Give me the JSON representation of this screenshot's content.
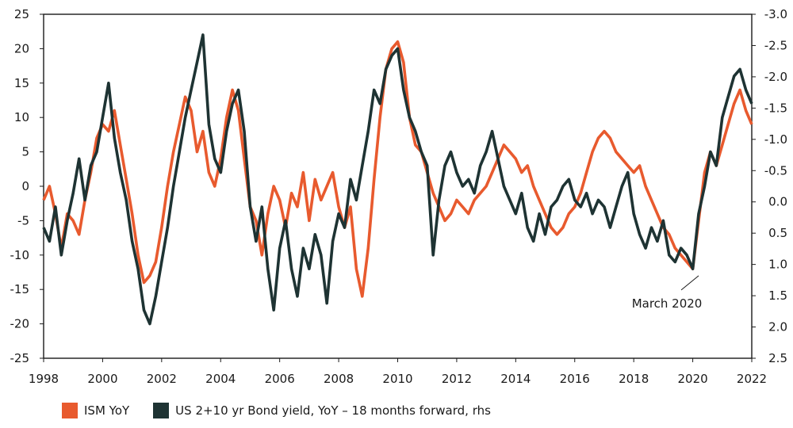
{
  "chart_data": {
    "type": "line",
    "title": "",
    "xlabel": "",
    "ylabel": "",
    "xlim": [
      1998,
      2022
    ],
    "ylim_left": [
      -25,
      25
    ],
    "ylim_right_inverted": [
      -3.0,
      2.5
    ],
    "x_ticks": [
      "1998",
      "2000",
      "2002",
      "2004",
      "2006",
      "2008",
      "2010",
      "2012",
      "2014",
      "2016",
      "2018",
      "2020",
      "2022"
    ],
    "y_ticks_left": [
      "25",
      "20",
      "15",
      "10",
      "5",
      "0",
      "-5",
      "-10",
      "-15",
      "-20",
      "-25"
    ],
    "y_ticks_right": [
      "-3.0",
      "-2.5",
      "-2.0",
      "-1.5",
      "-1.0",
      "-0.5",
      "0.0",
      "0.5",
      "1.0",
      "1.5",
      "2.0",
      "2.5"
    ],
    "grid": false,
    "legend_position": "bottom-left",
    "annotation": {
      "text": "March 2020",
      "x": 2020.2,
      "y_left": -13
    },
    "series": [
      {
        "name": "ISM YoY",
        "color": "#e85a2e",
        "axis": "left",
        "points": [
          [
            1998.0,
            -2
          ],
          [
            1998.2,
            0
          ],
          [
            1998.4,
            -4
          ],
          [
            1998.6,
            -9
          ],
          [
            1998.8,
            -4
          ],
          [
            1999.0,
            -5
          ],
          [
            1999.2,
            -7
          ],
          [
            1999.4,
            -2
          ],
          [
            1999.6,
            2
          ],
          [
            1999.8,
            7
          ],
          [
            2000.0,
            9
          ],
          [
            2000.2,
            8
          ],
          [
            2000.4,
            11
          ],
          [
            2000.6,
            6
          ],
          [
            2000.8,
            1
          ],
          [
            2001.0,
            -4
          ],
          [
            2001.2,
            -10
          ],
          [
            2001.4,
            -14
          ],
          [
            2001.6,
            -13
          ],
          [
            2001.8,
            -11
          ],
          [
            2002.0,
            -6
          ],
          [
            2002.2,
            0
          ],
          [
            2002.4,
            5
          ],
          [
            2002.6,
            9
          ],
          [
            2002.8,
            13
          ],
          [
            2003.0,
            11
          ],
          [
            2003.2,
            5
          ],
          [
            2003.4,
            8
          ],
          [
            2003.6,
            2
          ],
          [
            2003.8,
            0
          ],
          [
            2004.0,
            4
          ],
          [
            2004.2,
            10
          ],
          [
            2004.4,
            14
          ],
          [
            2004.6,
            11
          ],
          [
            2004.8,
            4
          ],
          [
            2005.0,
            -3
          ],
          [
            2005.2,
            -5
          ],
          [
            2005.4,
            -10
          ],
          [
            2005.6,
            -4
          ],
          [
            2005.8,
            0
          ],
          [
            2006.0,
            -2
          ],
          [
            2006.2,
            -6
          ],
          [
            2006.4,
            -1
          ],
          [
            2006.6,
            -3
          ],
          [
            2006.8,
            2
          ],
          [
            2007.0,
            -5
          ],
          [
            2007.2,
            1
          ],
          [
            2007.4,
            -2
          ],
          [
            2007.6,
            0
          ],
          [
            2007.8,
            2
          ],
          [
            2008.0,
            -3
          ],
          [
            2008.2,
            -6
          ],
          [
            2008.4,
            -3
          ],
          [
            2008.6,
            -12
          ],
          [
            2008.8,
            -16
          ],
          [
            2009.0,
            -9
          ],
          [
            2009.2,
            1
          ],
          [
            2009.4,
            10
          ],
          [
            2009.6,
            17
          ],
          [
            2009.8,
            20
          ],
          [
            2010.0,
            21
          ],
          [
            2010.2,
            18
          ],
          [
            2010.4,
            10
          ],
          [
            2010.6,
            6
          ],
          [
            2010.8,
            5
          ],
          [
            2011.0,
            2
          ],
          [
            2011.2,
            -1
          ],
          [
            2011.4,
            -3
          ],
          [
            2011.6,
            -5
          ],
          [
            2011.8,
            -4
          ],
          [
            2012.0,
            -2
          ],
          [
            2012.2,
            -3
          ],
          [
            2012.4,
            -4
          ],
          [
            2012.6,
            -2
          ],
          [
            2012.8,
            -1
          ],
          [
            2013.0,
            0
          ],
          [
            2013.2,
            2
          ],
          [
            2013.4,
            4
          ],
          [
            2013.6,
            6
          ],
          [
            2013.8,
            5
          ],
          [
            2014.0,
            4
          ],
          [
            2014.2,
            2
          ],
          [
            2014.4,
            3
          ],
          [
            2014.6,
            0
          ],
          [
            2014.8,
            -2
          ],
          [
            2015.0,
            -4
          ],
          [
            2015.2,
            -6
          ],
          [
            2015.4,
            -7
          ],
          [
            2015.6,
            -6
          ],
          [
            2015.8,
            -4
          ],
          [
            2016.0,
            -3
          ],
          [
            2016.2,
            -1
          ],
          [
            2016.4,
            2
          ],
          [
            2016.6,
            5
          ],
          [
            2016.8,
            7
          ],
          [
            2017.0,
            8
          ],
          [
            2017.2,
            7
          ],
          [
            2017.4,
            5
          ],
          [
            2017.6,
            4
          ],
          [
            2017.8,
            3
          ],
          [
            2018.0,
            2
          ],
          [
            2018.2,
            3
          ],
          [
            2018.4,
            0
          ],
          [
            2018.6,
            -2
          ],
          [
            2018.8,
            -4
          ],
          [
            2019.0,
            -6
          ],
          [
            2019.2,
            -7
          ],
          [
            2019.4,
            -9
          ],
          [
            2019.6,
            -10
          ],
          [
            2019.8,
            -11
          ],
          [
            2020.0,
            -12
          ],
          [
            2020.2,
            -5
          ],
          [
            2020.4,
            2
          ],
          [
            2020.6,
            5
          ],
          [
            2020.8,
            3
          ],
          [
            2021.0,
            6
          ],
          [
            2021.2,
            9
          ],
          [
            2021.4,
            12
          ],
          [
            2021.6,
            14
          ],
          [
            2021.8,
            11
          ],
          [
            2022.0,
            9
          ]
        ]
      },
      {
        "name": "US 2+10 yr Bond yield, YoY – 18 months forward, rhs",
        "color": "#1e3333",
        "axis": "left",
        "points": [
          [
            1998.0,
            -6
          ],
          [
            1998.2,
            -8
          ],
          [
            1998.4,
            -3
          ],
          [
            1998.6,
            -10
          ],
          [
            1998.8,
            -5
          ],
          [
            1999.0,
            -1
          ],
          [
            1999.2,
            4
          ],
          [
            1999.4,
            -2
          ],
          [
            1999.6,
            3
          ],
          [
            1999.8,
            5
          ],
          [
            2000.0,
            10
          ],
          [
            2000.2,
            15
          ],
          [
            2000.4,
            7
          ],
          [
            2000.6,
            2
          ],
          [
            2000.8,
            -2
          ],
          [
            2001.0,
            -8
          ],
          [
            2001.2,
            -12
          ],
          [
            2001.4,
            -18
          ],
          [
            2001.6,
            -20
          ],
          [
            2001.8,
            -16
          ],
          [
            2002.0,
            -11
          ],
          [
            2002.2,
            -6
          ],
          [
            2002.4,
            0
          ],
          [
            2002.6,
            5
          ],
          [
            2002.8,
            10
          ],
          [
            2003.0,
            14
          ],
          [
            2003.2,
            18
          ],
          [
            2003.4,
            22
          ],
          [
            2003.6,
            9
          ],
          [
            2003.8,
            4
          ],
          [
            2004.0,
            2
          ],
          [
            2004.2,
            8
          ],
          [
            2004.4,
            12
          ],
          [
            2004.6,
            14
          ],
          [
            2004.8,
            8
          ],
          [
            2005.0,
            -3
          ],
          [
            2005.2,
            -8
          ],
          [
            2005.4,
            -3
          ],
          [
            2005.6,
            -12
          ],
          [
            2005.8,
            -18
          ],
          [
            2006.0,
            -9
          ],
          [
            2006.2,
            -5
          ],
          [
            2006.4,
            -12
          ],
          [
            2006.6,
            -16
          ],
          [
            2006.8,
            -9
          ],
          [
            2007.0,
            -12
          ],
          [
            2007.2,
            -7
          ],
          [
            2007.4,
            -10
          ],
          [
            2007.6,
            -17
          ],
          [
            2007.8,
            -8
          ],
          [
            2008.0,
            -4
          ],
          [
            2008.2,
            -6
          ],
          [
            2008.4,
            1
          ],
          [
            2008.6,
            -2
          ],
          [
            2008.8,
            3
          ],
          [
            2009.0,
            8
          ],
          [
            2009.2,
            14
          ],
          [
            2009.4,
            12
          ],
          [
            2009.6,
            17
          ],
          [
            2009.8,
            19
          ],
          [
            2010.0,
            20
          ],
          [
            2010.2,
            14
          ],
          [
            2010.4,
            10
          ],
          [
            2010.6,
            8
          ],
          [
            2010.8,
            5
          ],
          [
            2011.0,
            3
          ],
          [
            2011.2,
            -10
          ],
          [
            2011.4,
            -2
          ],
          [
            2011.6,
            3
          ],
          [
            2011.8,
            5
          ],
          [
            2012.0,
            2
          ],
          [
            2012.2,
            0
          ],
          [
            2012.4,
            1
          ],
          [
            2012.6,
            -1
          ],
          [
            2012.8,
            3
          ],
          [
            2013.0,
            5
          ],
          [
            2013.2,
            8
          ],
          [
            2013.4,
            4
          ],
          [
            2013.6,
            0
          ],
          [
            2013.8,
            -2
          ],
          [
            2014.0,
            -4
          ],
          [
            2014.2,
            -1
          ],
          [
            2014.4,
            -6
          ],
          [
            2014.6,
            -8
          ],
          [
            2014.8,
            -4
          ],
          [
            2015.0,
            -7
          ],
          [
            2015.2,
            -3
          ],
          [
            2015.4,
            -2
          ],
          [
            2015.6,
            0
          ],
          [
            2015.8,
            1
          ],
          [
            2016.0,
            -2
          ],
          [
            2016.2,
            -3
          ],
          [
            2016.4,
            -1
          ],
          [
            2016.6,
            -4
          ],
          [
            2016.8,
            -2
          ],
          [
            2017.0,
            -3
          ],
          [
            2017.2,
            -6
          ],
          [
            2017.4,
            -3
          ],
          [
            2017.6,
            0
          ],
          [
            2017.8,
            2
          ],
          [
            2018.0,
            -4
          ],
          [
            2018.2,
            -7
          ],
          [
            2018.4,
            -9
          ],
          [
            2018.6,
            -6
          ],
          [
            2018.8,
            -8
          ],
          [
            2019.0,
            -5
          ],
          [
            2019.2,
            -10
          ],
          [
            2019.4,
            -11
          ],
          [
            2019.6,
            -9
          ],
          [
            2019.8,
            -10
          ],
          [
            2020.0,
            -12
          ],
          [
            2020.2,
            -4
          ],
          [
            2020.4,
            0
          ],
          [
            2020.6,
            5
          ],
          [
            2020.8,
            3
          ],
          [
            2021.0,
            10
          ],
          [
            2021.2,
            13
          ],
          [
            2021.4,
            16
          ],
          [
            2021.6,
            17
          ],
          [
            2021.8,
            14
          ],
          [
            2022.0,
            12
          ]
        ]
      }
    ]
  }
}
